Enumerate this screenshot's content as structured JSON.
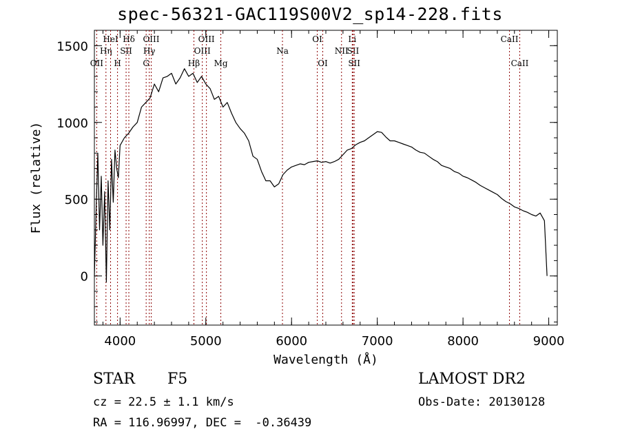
{
  "title": "spec-56321-GAC119S00V2_sp14-228.fits",
  "info": {
    "class_label": "STAR",
    "subclass": "F5",
    "survey": "LAMOST DR2",
    "cz": "cz = 22.5 ± 1.1 km/s",
    "obs_date": "Obs-Date: 20130128",
    "radec": "RA = 116.96997, DEC =  -0.36439"
  },
  "chart_data": {
    "type": "line",
    "xlabel": "Wavelength (Å)",
    "ylabel": "Flux (relative)",
    "xlim": [
      3700,
      9100
    ],
    "ylim": [
      -320,
      1600
    ],
    "x_ticks": [
      4000,
      5000,
      6000,
      7000,
      8000,
      9000
    ],
    "y_ticks": [
      0,
      500,
      1000,
      1500
    ],
    "x_minor_step": 200,
    "y_minor_step": 100,
    "grid": false,
    "line_color": "#000000",
    "marker_color": "#8b0000",
    "series": [
      {
        "x": [
          3700,
          3720,
          3740,
          3760,
          3780,
          3800,
          3820,
          3840,
          3860,
          3880,
          3900,
          3920,
          3940,
          3960,
          3980,
          4000,
          4050,
          4100,
          4150,
          4200,
          4250,
          4300,
          4350,
          4400,
          4450,
          4500,
          4550,
          4600,
          4650,
          4700,
          4750,
          4800,
          4850,
          4900,
          4950,
          5000,
          5050,
          5100,
          5150,
          5200,
          5250,
          5300,
          5350,
          5400,
          5450,
          5500,
          5550,
          5600,
          5650,
          5700,
          5750,
          5800,
          5850,
          5900,
          5950,
          6000,
          6050,
          6100,
          6150,
          6200,
          6250,
          6300,
          6350,
          6400,
          6450,
          6500,
          6550,
          6600,
          6650,
          6700,
          6750,
          6800,
          6850,
          6900,
          6950,
          7000,
          7050,
          7100,
          7150,
          7200,
          7250,
          7300,
          7350,
          7400,
          7450,
          7500,
          7550,
          7600,
          7650,
          7700,
          7750,
          7800,
          7850,
          7900,
          7950,
          8000,
          8050,
          8100,
          8150,
          8200,
          8250,
          8300,
          8350,
          8400,
          8450,
          8500,
          8550,
          8600,
          8650,
          8700,
          8750,
          8800,
          8850,
          8900,
          8950,
          8980
        ],
        "y": [
          0,
          420,
          800,
          300,
          650,
          200,
          550,
          -40,
          620,
          300,
          760,
          480,
          820,
          700,
          640,
          850,
          900,
          930,
          970,
          1000,
          1100,
          1130,
          1160,
          1250,
          1200,
          1290,
          1300,
          1320,
          1250,
          1290,
          1350,
          1300,
          1320,
          1260,
          1300,
          1250,
          1220,
          1150,
          1170,
          1100,
          1130,
          1060,
          1000,
          960,
          930,
          880,
          780,
          760,
          680,
          620,
          620,
          580,
          600,
          660,
          690,
          710,
          720,
          730,
          725,
          740,
          745,
          750,
          740,
          745,
          735,
          745,
          760,
          790,
          820,
          830,
          855,
          870,
          880,
          900,
          920,
          940,
          935,
          905,
          880,
          880,
          870,
          860,
          850,
          840,
          820,
          805,
          800,
          780,
          760,
          745,
          720,
          710,
          700,
          680,
          670,
          650,
          640,
          625,
          610,
          590,
          575,
          560,
          545,
          530,
          505,
          485,
          470,
          450,
          440,
          425,
          415,
          400,
          390,
          410,
          360,
          0
        ]
      }
    ],
    "line_markers": [
      {
        "label": "OII",
        "x": 3727,
        "row": 3
      },
      {
        "label": "Hη",
        "x": 3835,
        "row": 2
      },
      {
        "label": "HeI",
        "x": 3889,
        "row": 1
      },
      {
        "label": "H",
        "x": 3970,
        "row": 3
      },
      {
        "label": "SII",
        "x": 4070,
        "row": 2
      },
      {
        "label": "Hδ",
        "x": 4102,
        "row": 1
      },
      {
        "label": "G",
        "x": 4304,
        "row": 3
      },
      {
        "label": "Hγ",
        "x": 4340,
        "row": 2
      },
      {
        "label": "OIII",
        "x": 4363,
        "row": 1
      },
      {
        "label": "Hβ",
        "x": 4861,
        "row": 3
      },
      {
        "label": "OIII",
        "x": 4959,
        "row": 2
      },
      {
        "label": "OIII",
        "x": 5007,
        "row": 1
      },
      {
        "label": "Mg",
        "x": 5175,
        "row": 3
      },
      {
        "label": "Na",
        "x": 5894,
        "row": 2
      },
      {
        "label": "OI",
        "x": 6300,
        "row": 1
      },
      {
        "label": "OI",
        "x": 6364,
        "row": 3
      },
      {
        "label": "NII",
        "x": 6583,
        "row": 2
      },
      {
        "label": "Li",
        "x": 6708,
        "row": 1
      },
      {
        "label": "SII",
        "x": 6717,
        "row": 2
      },
      {
        "label": "SII",
        "x": 6731,
        "row": 3
      },
      {
        "label": "CaII",
        "x": 8542,
        "row": 1
      },
      {
        "label": "CaII",
        "x": 8662,
        "row": 3
      }
    ]
  }
}
